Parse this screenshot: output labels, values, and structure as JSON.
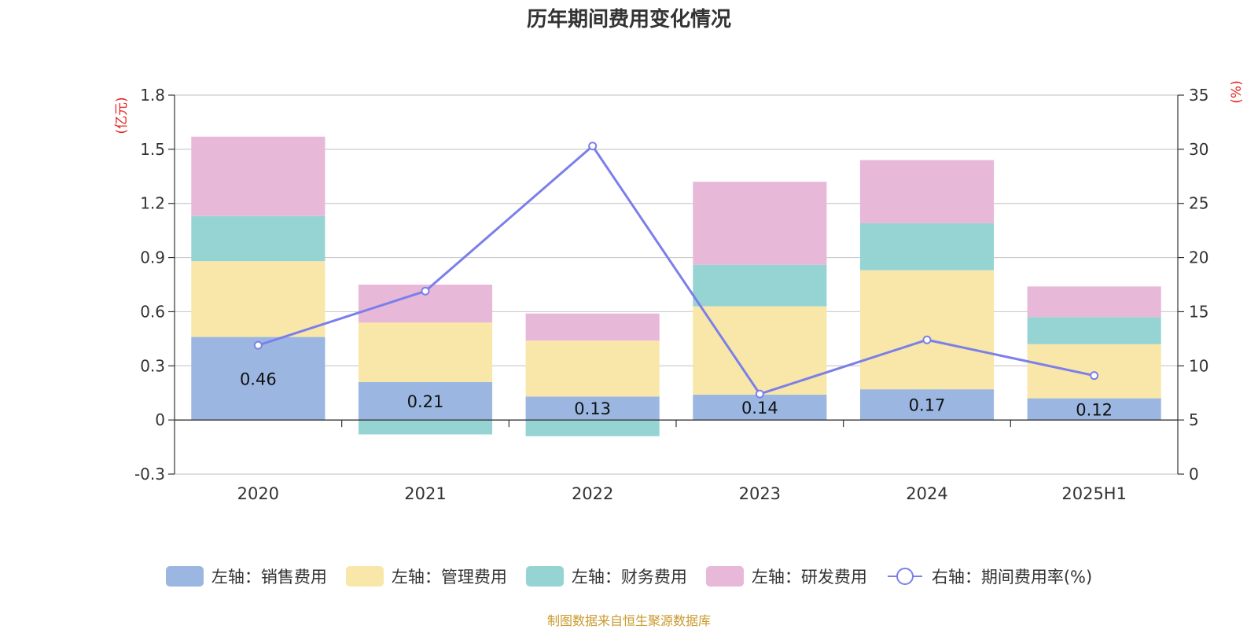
{
  "chart_data": {
    "type": "bar",
    "title": "历年期间费用变化情况",
    "categories": [
      "2020",
      "2021",
      "2022",
      "2023",
      "2024",
      "2025H1"
    ],
    "left_axis": {
      "unit": "(亿元)",
      "range": [
        -0.3,
        1.8
      ],
      "ticks": [
        -0.3,
        0,
        0.3,
        0.6,
        0.9,
        1.2,
        1.5,
        1.8
      ],
      "tick_labels": [
        "-0.3",
        "0",
        "0.3",
        "0.6",
        "0.9",
        "1.2",
        "1.5",
        "1.8"
      ]
    },
    "right_axis": {
      "unit": "(%)",
      "range": [
        0,
        35
      ],
      "ticks": [
        0,
        5,
        10,
        15,
        20,
        25,
        30,
        35
      ],
      "tick_labels": [
        "0",
        "5",
        "10",
        "15",
        "20",
        "25",
        "30",
        "35"
      ]
    },
    "stacked": true,
    "series": [
      {
        "name": "左轴：销售费用",
        "type": "bar",
        "color": "#9bb7e1",
        "values": [
          0.46,
          0.21,
          0.13,
          0.14,
          0.17,
          0.12
        ],
        "data_labels": [
          "0.46",
          "0.21",
          "0.13",
          "0.14",
          "0.17",
          "0.12"
        ]
      },
      {
        "name": "左轴：管理费用",
        "type": "bar",
        "color": "#f8e7a8",
        "values": [
          0.42,
          0.33,
          0.31,
          0.49,
          0.66,
          0.3
        ]
      },
      {
        "name": "左轴：财务费用",
        "type": "bar",
        "color": "#96d4d4",
        "values": [
          0.25,
          -0.08,
          -0.09,
          0.23,
          0.26,
          0.15
        ]
      },
      {
        "name": "左轴：研发费用",
        "type": "bar",
        "color": "#e8b8d9",
        "values": [
          0.44,
          0.21,
          0.15,
          0.46,
          0.35,
          0.17
        ]
      },
      {
        "name": "右轴：期间费用率(%)",
        "type": "line",
        "axis": "right",
        "color": "#7b7fea",
        "values": [
          11.9,
          16.9,
          30.3,
          7.4,
          12.4,
          9.1
        ]
      }
    ],
    "grid": true,
    "legend_position": "bottom"
  },
  "footer": "制图数据来自恒生聚源数据库"
}
